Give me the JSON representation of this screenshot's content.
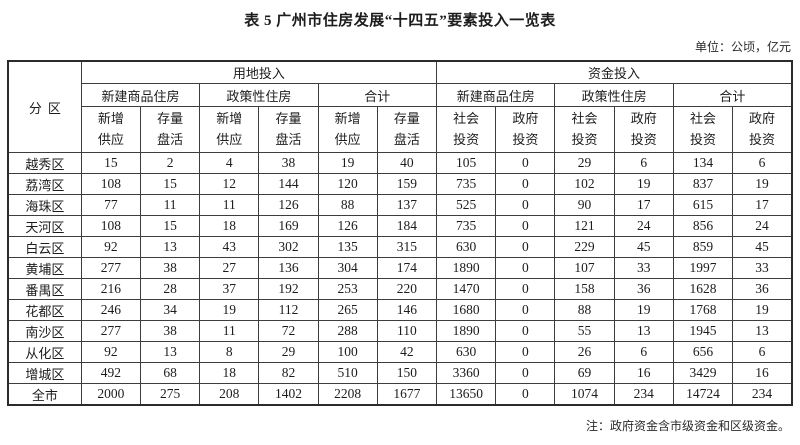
{
  "page": {
    "title": "表 5 广州市住房发展“十四五”要素投入一览表",
    "unit_note": "单位：公顷，亿元",
    "footnote": "注：政府资金含市级资金和区级资金。"
  },
  "table": {
    "corner_header": "分区",
    "top_groups": [
      {
        "label": "用地投入"
      },
      {
        "label": "资金投入"
      }
    ],
    "mid_groups": [
      {
        "label": "新建商品住房"
      },
      {
        "label": "政策性住房"
      },
      {
        "label": "合计"
      },
      {
        "label": "新建商品住房"
      },
      {
        "label": "政策性住房"
      },
      {
        "label": "合计"
      }
    ],
    "sub_headers": [
      "新增\n供应",
      "存量\n盘活",
      "新增\n供应",
      "存量\n盘活",
      "新增\n供应",
      "存量\n盘活",
      "社会\n投资",
      "政府\n投资",
      "社会\n投资",
      "政府\n投资",
      "社会\n投资",
      "政府\n投资"
    ],
    "rows": [
      {
        "label": "越秀区",
        "values": [
          15,
          2,
          4,
          38,
          19,
          40,
          105,
          0,
          29,
          6,
          134,
          6
        ]
      },
      {
        "label": "荔湾区",
        "values": [
          108,
          15,
          12,
          144,
          120,
          159,
          735,
          0,
          102,
          19,
          837,
          19
        ]
      },
      {
        "label": "海珠区",
        "values": [
          77,
          11,
          11,
          126,
          88,
          137,
          525,
          0,
          90,
          17,
          615,
          17
        ]
      },
      {
        "label": "天河区",
        "values": [
          108,
          15,
          18,
          169,
          126,
          184,
          735,
          0,
          121,
          24,
          856,
          24
        ]
      },
      {
        "label": "白云区",
        "values": [
          92,
          13,
          43,
          302,
          135,
          315,
          630,
          0,
          229,
          45,
          859,
          45
        ]
      },
      {
        "label": "黄埔区",
        "values": [
          277,
          38,
          27,
          136,
          304,
          174,
          1890,
          0,
          107,
          33,
          1997,
          33
        ]
      },
      {
        "label": "番禺区",
        "values": [
          216,
          28,
          37,
          192,
          253,
          220,
          1470,
          0,
          158,
          36,
          1628,
          36
        ]
      },
      {
        "label": "花都区",
        "values": [
          246,
          34,
          19,
          112,
          265,
          146,
          1680,
          0,
          88,
          19,
          1768,
          19
        ]
      },
      {
        "label": "南沙区",
        "values": [
          277,
          38,
          11,
          72,
          288,
          110,
          1890,
          0,
          55,
          13,
          1945,
          13
        ]
      },
      {
        "label": "从化区",
        "values": [
          92,
          13,
          8,
          29,
          100,
          42,
          630,
          0,
          26,
          6,
          656,
          6
        ]
      },
      {
        "label": "增城区",
        "values": [
          492,
          68,
          18,
          82,
          510,
          150,
          3360,
          0,
          69,
          16,
          3429,
          16
        ]
      },
      {
        "label": "全市",
        "values": [
          2000,
          275,
          208,
          1402,
          2208,
          1677,
          13650,
          0,
          1074,
          234,
          14724,
          234
        ]
      }
    ]
  }
}
